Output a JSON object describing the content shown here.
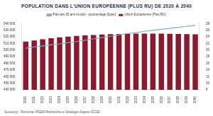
{
  "chart_data": {
    "type": "bar",
    "title": "POPULATION DANS L'UNION EUROPÉENNE (PLUS RU) DE 2020 À 2040",
    "source": "Source(s) : Pernoma: RSEM Recherche et Stratégie d'après OCDE",
    "categories": [
      "2020",
      "2021",
      "2022",
      "2023",
      "2024",
      "2025",
      "2026",
      "2027",
      "2028",
      "2029",
      "2030",
      "2031",
      "2032",
      "2033",
      "2034",
      "2035",
      "2036",
      "2037",
      "2038",
      "2039",
      "2040"
    ],
    "series": [
      {
        "name": "Union Européenne (Plus RU)",
        "type": "bar",
        "color": "#8b1a2f",
        "values": [
          513000,
          514500,
          516500,
          518000,
          519500,
          520500,
          521500,
          522300,
          523000,
          523600,
          524100,
          524500,
          524800,
          525000,
          525100,
          525100,
          525000,
          524800,
          524600,
          524300,
          524000
        ]
      },
      {
        "name": "Part des 65 ans et plus - pourcentage (ligne)",
        "type": "line",
        "axis": "y2",
        "color": "#7fa8c9",
        "values": [
          20.6,
          21.0,
          21.3,
          21.6,
          21.9,
          22.3,
          22.6,
          23.0,
          23.4,
          23.8,
          24.2,
          24.6,
          25.0,
          25.3,
          25.7,
          26.0,
          26.3,
          26.6,
          26.9,
          27.2,
          27.5
        ]
      }
    ],
    "ylim": [
      440000,
      540000
    ],
    "yticks": [
      {
        "value": 440000,
        "label": "440 000"
      },
      {
        "value": 450000,
        "label": "450 000"
      },
      {
        "value": 460000,
        "label": "460 000"
      },
      {
        "value": 470000,
        "label": "470 000"
      },
      {
        "value": 480000,
        "label": "480 000"
      },
      {
        "value": 490000,
        "label": "490 000"
      },
      {
        "value": 500000,
        "label": "500 000"
      },
      {
        "value": 510000,
        "label": "510 000"
      },
      {
        "value": 520000,
        "label": "520 000"
      },
      {
        "value": 530000,
        "label": "530 000"
      },
      {
        "value": 540000,
        "label": "540 000"
      }
    ],
    "y2lim": [
      8,
      28
    ],
    "y2ticks": [
      8,
      10,
      12,
      14,
      16,
      18,
      20,
      22,
      24,
      26,
      28
    ],
    "grid": false,
    "legend": "top"
  }
}
